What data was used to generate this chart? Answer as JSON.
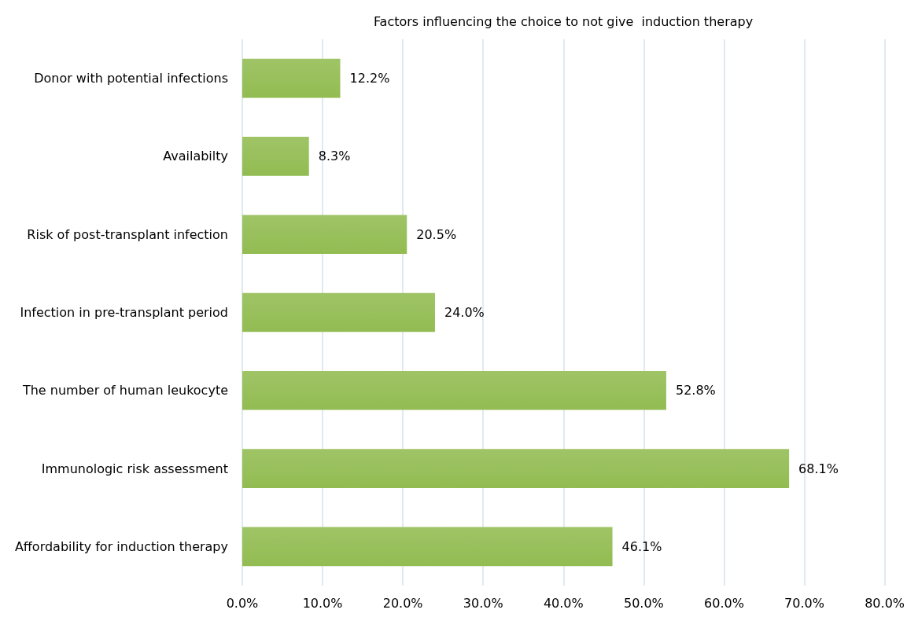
{
  "chart_data": {
    "type": "bar",
    "orientation": "horizontal",
    "title": "Factors influencing the choice to not give  induction therapy",
    "categories": [
      "Donor with potential infections",
      "Availabilty",
      "Risk of post-transplant infection",
      "Infection in pre-transplant period",
      "The number of human leukocyte",
      "Immunologic risk assessment",
      "Affordability for induction therapy"
    ],
    "values": [
      12.2,
      8.3,
      20.5,
      24.0,
      52.8,
      68.1,
      46.1
    ],
    "value_labels": [
      "12.2%",
      "8.3%",
      "20.5%",
      "24.0%",
      "52.8%",
      "68.1%",
      "46.1%"
    ],
    "color": "#92bc52",
    "xlim": [
      0,
      80
    ],
    "xticks": [
      {
        "value": 0,
        "label": "0.0%"
      },
      {
        "value": 10,
        "label": "10.0%"
      },
      {
        "value": 20,
        "label": "20.0%"
      },
      {
        "value": 30,
        "label": "30.0%"
      },
      {
        "value": 40,
        "label": "40.0%"
      },
      {
        "value": 50,
        "label": "50.0%"
      },
      {
        "value": 60,
        "label": "60.0%"
      },
      {
        "value": 70,
        "label": "70.0%"
      },
      {
        "value": 80,
        "label": "80.0%"
      }
    ],
    "grid": "x"
  }
}
